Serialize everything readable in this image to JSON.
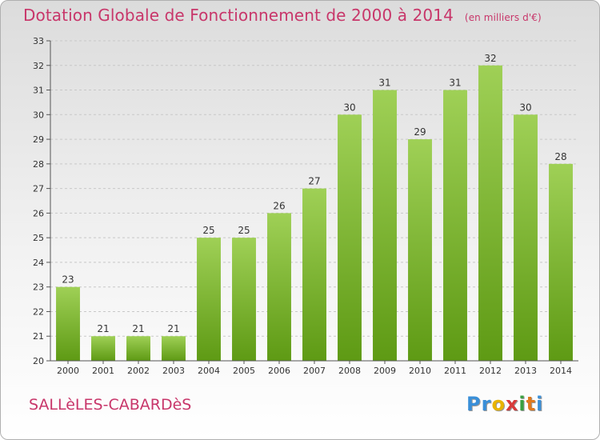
{
  "header": {
    "title": "Dotation Globale de Fonctionnement de 2000 à 2014",
    "unit": "(en milliers d'€)"
  },
  "footer": {
    "town": "SALLèLES-CABARDèS",
    "logo_letters": [
      "P",
      "r",
      "o",
      "x",
      "i",
      "t",
      "i"
    ],
    "logo_colors": [
      "#3a8fd8",
      "#3a8fd8",
      "#e8b400",
      "#d83a3a",
      "#3aa040",
      "#e07a20",
      "#3a8fd8"
    ]
  },
  "colors": {
    "title": "#c8366a",
    "bar_top": "#9fd056",
    "bar_bottom": "#5e9a14",
    "grid": "#c8c8c8",
    "axis": "#555555"
  },
  "chart_data": {
    "type": "bar",
    "title": "Dotation Globale de Fonctionnement de 2000 à 2014",
    "subtitle": "(en milliers d'€)",
    "xlabel": "",
    "ylabel": "",
    "categories": [
      "2000",
      "2001",
      "2002",
      "2003",
      "2004",
      "2005",
      "2006",
      "2007",
      "2008",
      "2009",
      "2010",
      "2011",
      "2012",
      "2013",
      "2014"
    ],
    "values": [
      23,
      21,
      21,
      21,
      25,
      25,
      26,
      27,
      30,
      31,
      29,
      31,
      32,
      30,
      28
    ],
    "ylim": [
      20,
      33
    ],
    "yticks": [
      20,
      21,
      22,
      23,
      24,
      25,
      26,
      27,
      28,
      29,
      30,
      31,
      32,
      33
    ],
    "grid": true,
    "legend": "none"
  }
}
